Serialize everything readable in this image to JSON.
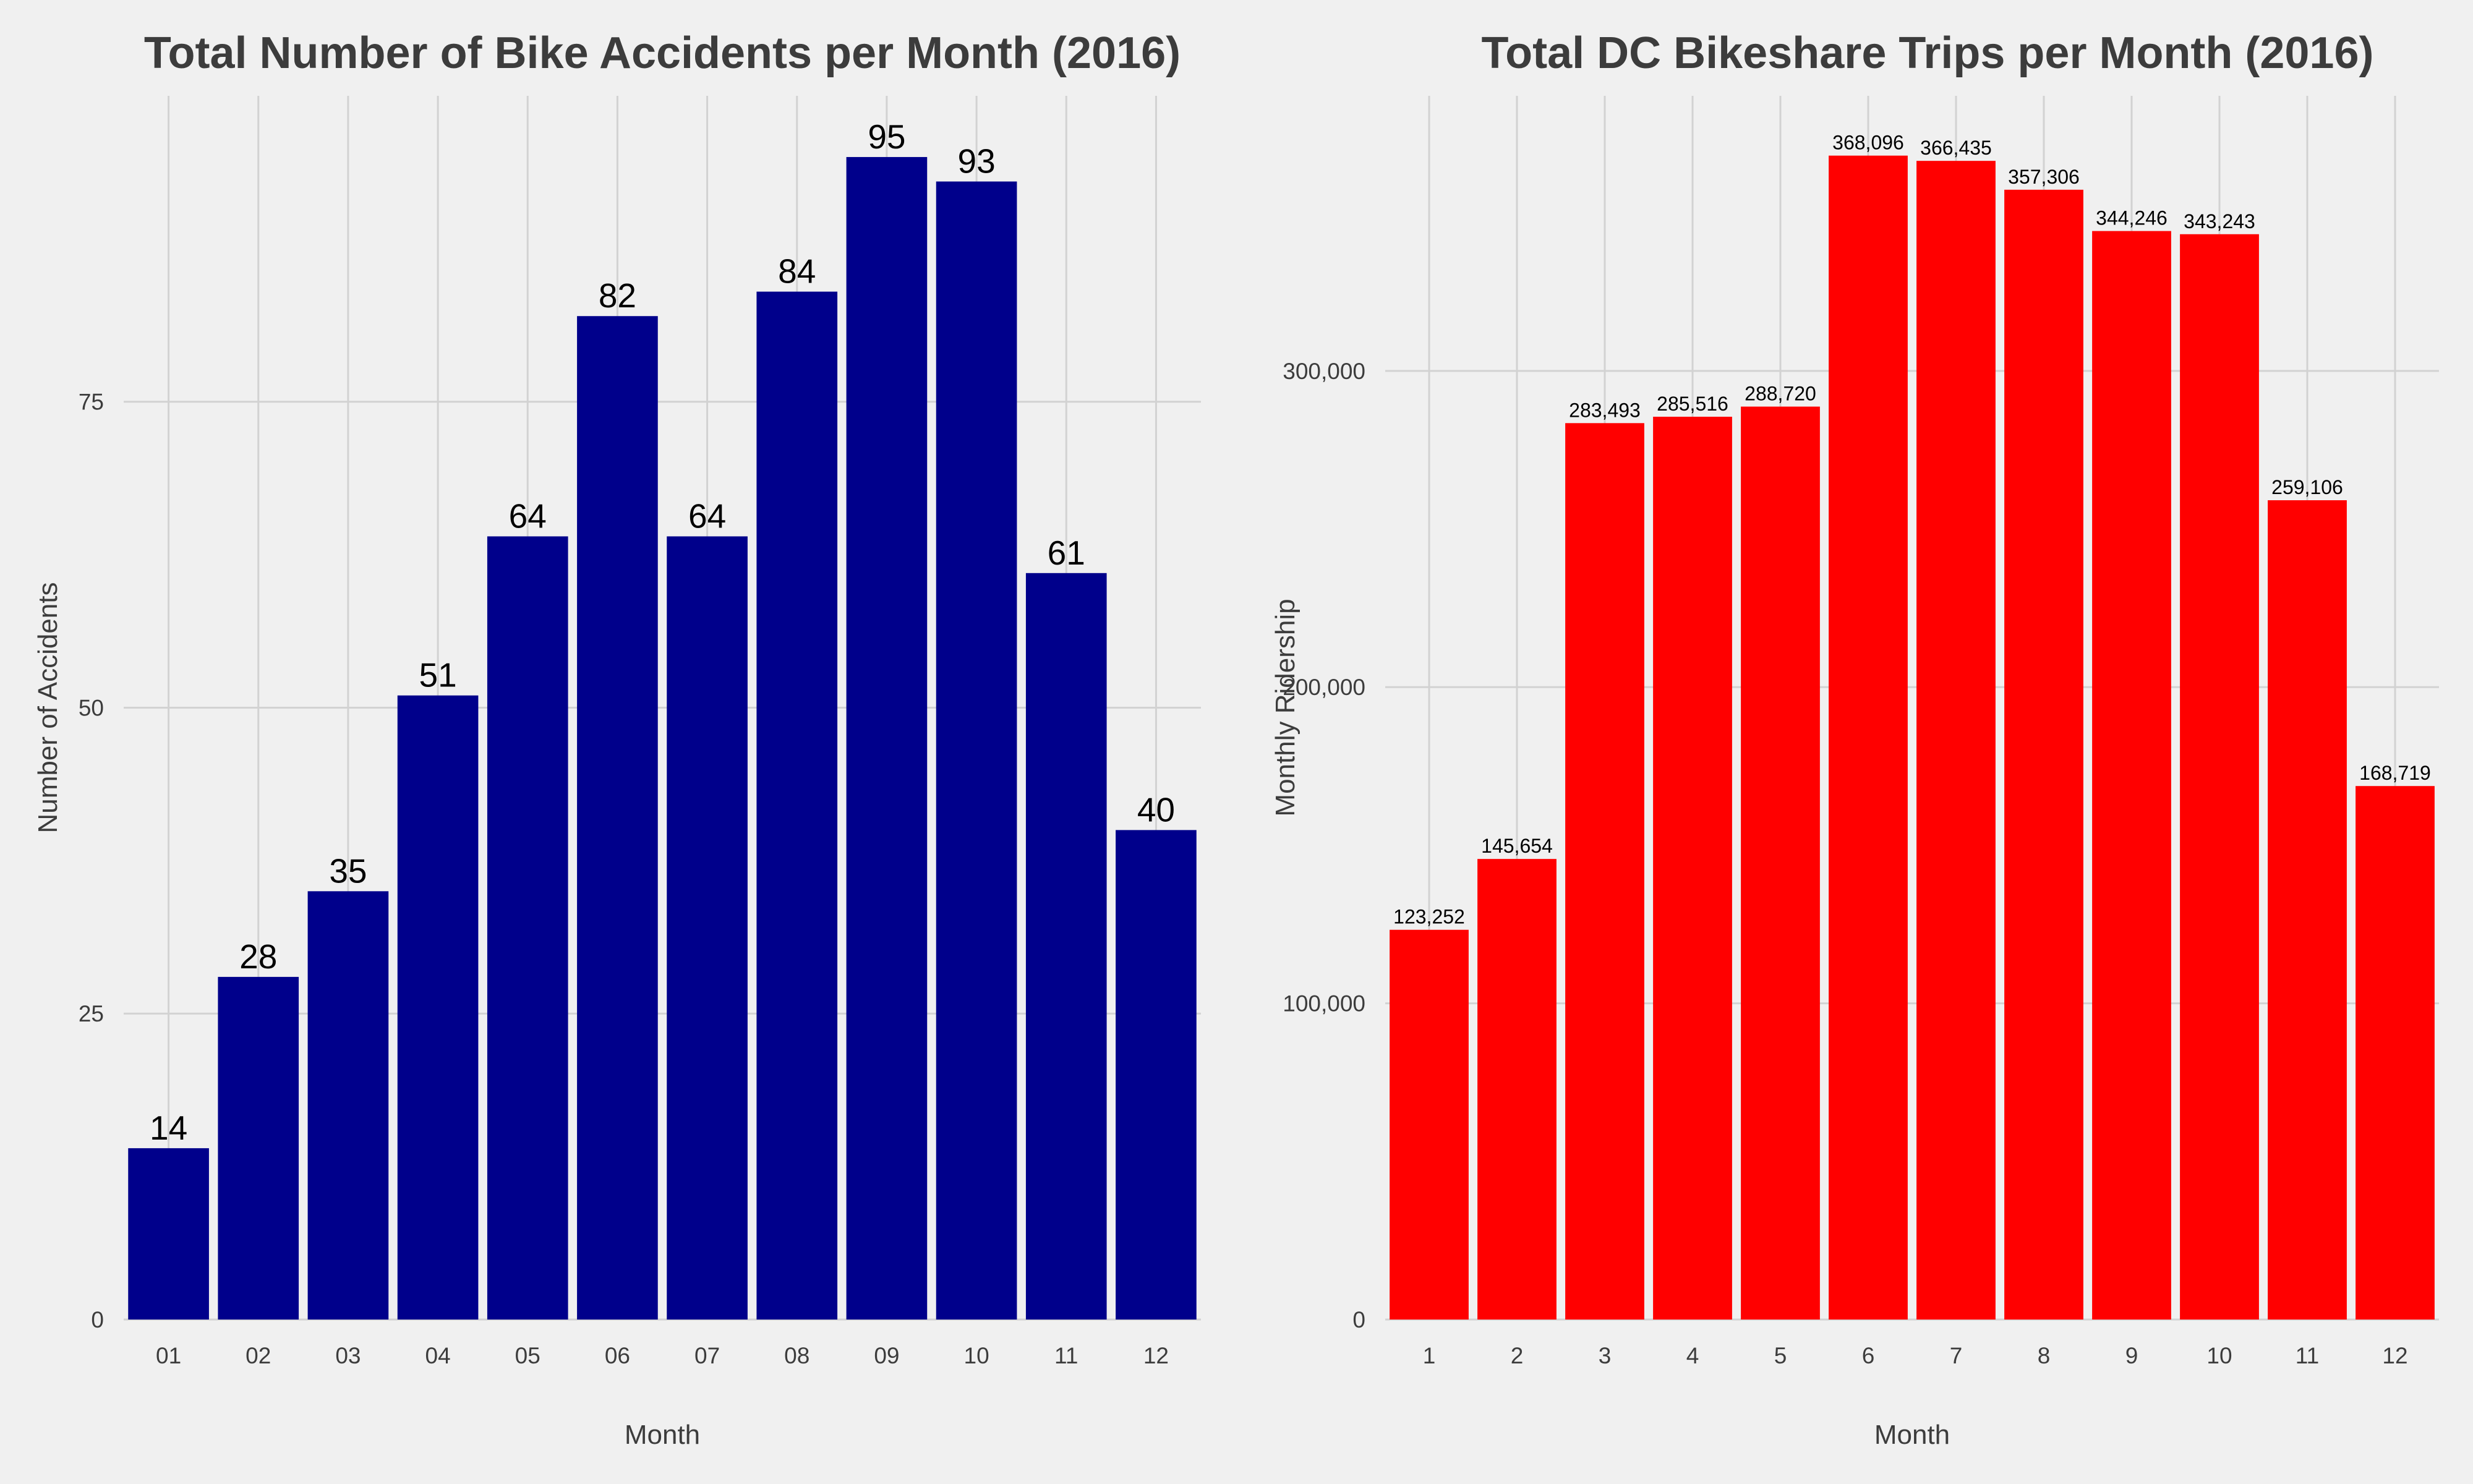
{
  "chart_data": [
    {
      "type": "bar",
      "title": "Total Number of Bike Accidents per Month (2016)",
      "xlabel": "Month",
      "ylabel": "Number of Accidents",
      "categories": [
        "01",
        "02",
        "03",
        "04",
        "05",
        "06",
        "07",
        "08",
        "09",
        "10",
        "11",
        "12"
      ],
      "values": [
        14,
        28,
        35,
        51,
        64,
        82,
        64,
        84,
        95,
        93,
        61,
        40
      ],
      "value_labels": [
        "14",
        "28",
        "35",
        "51",
        "64",
        "82",
        "64",
        "84",
        "95",
        "93",
        "61",
        "40"
      ],
      "ylim": [
        0,
        100
      ],
      "yticks": [
        0,
        25,
        50,
        75
      ],
      "ytick_labels": [
        "0",
        "25",
        "50",
        "75"
      ],
      "grid": true,
      "bar_color": "#00008b"
    },
    {
      "type": "bar",
      "title": "Total DC Bikeshare Trips per Month (2016)",
      "xlabel": "Month",
      "ylabel": "Monthly Ridership",
      "categories": [
        "1",
        "2",
        "3",
        "4",
        "5",
        "6",
        "7",
        "8",
        "9",
        "10",
        "11",
        "12"
      ],
      "values": [
        123252,
        145654,
        283493,
        285516,
        288720,
        368096,
        366435,
        357306,
        344246,
        343243,
        259106,
        168719
      ],
      "value_labels": [
        "123,252",
        "145,654",
        "283,493",
        "285,516",
        "288,720",
        "368,096",
        "366,435",
        "357,306",
        "344,246",
        "343,243",
        "259,106",
        "168,719"
      ],
      "ylim": [
        0,
        387000
      ],
      "yticks": [
        0,
        100000,
        200000,
        300000
      ],
      "ytick_labels": [
        "0",
        "100,000",
        "200,000",
        "300,000"
      ],
      "grid": true,
      "bar_color": "#ff0000"
    }
  ],
  "colors": {
    "background": "#f0f0f0",
    "grid": "#d2d2d2",
    "title_text": "#3c3c3c",
    "axis_text": "#3c3c3c",
    "tick_text": "#3c3c3c",
    "value_label_text": "#000000"
  }
}
